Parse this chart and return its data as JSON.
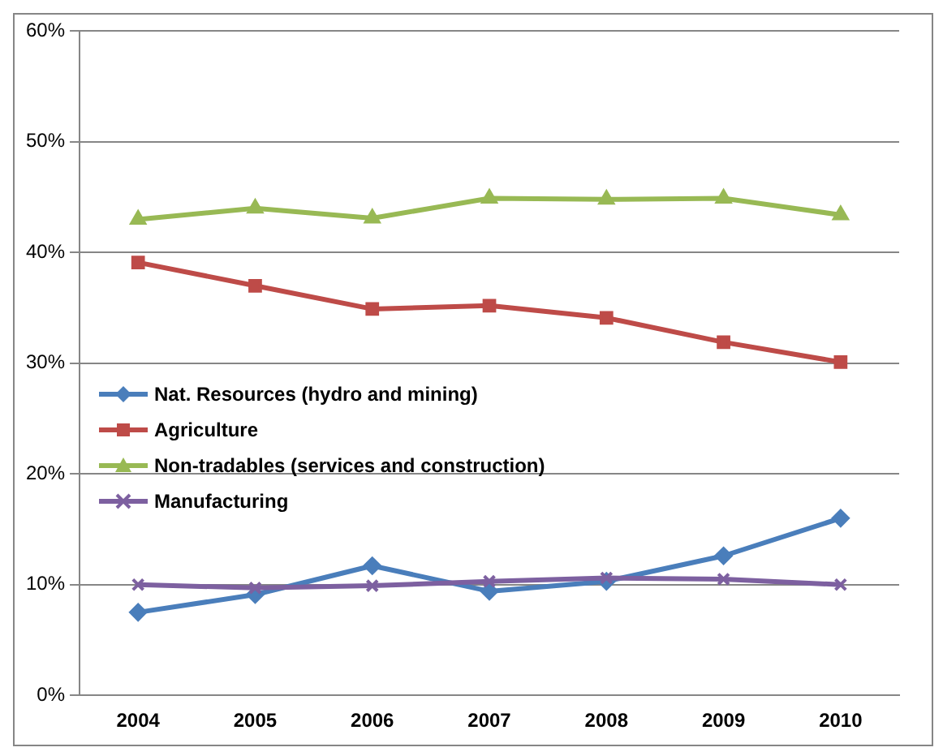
{
  "chart_data": {
    "type": "line",
    "categories": [
      "2004",
      "2005",
      "2006",
      "2007",
      "2008",
      "2009",
      "2010"
    ],
    "series": [
      {
        "name": "Nat. Resources (hydro and mining)",
        "color": "#4a7ebb",
        "marker": "diamond",
        "values": [
          7.5,
          9.1,
          11.7,
          9.4,
          10.3,
          12.6,
          16.0
        ]
      },
      {
        "name": "Agriculture",
        "color": "#be4b48",
        "marker": "square",
        "values": [
          39.1,
          37.0,
          34.9,
          35.2,
          34.1,
          31.9,
          30.1
        ]
      },
      {
        "name": "Non-tradables (services and construction)",
        "color": "#98b954",
        "marker": "triangle",
        "values": [
          43.0,
          44.0,
          43.1,
          44.9,
          44.8,
          44.9,
          43.4
        ]
      },
      {
        "name": "Manufacturing",
        "color": "#7d60a0",
        "marker": "cross",
        "values": [
          10.0,
          9.7,
          9.9,
          10.3,
          10.6,
          10.5,
          10.0
        ]
      }
    ],
    "ylim": [
      0,
      60
    ],
    "yticks": [
      {
        "value": 0,
        "label": "0%"
      },
      {
        "value": 10,
        "label": "10%"
      },
      {
        "value": 20,
        "label": "20%"
      },
      {
        "value": 30,
        "label": "30%"
      },
      {
        "value": 40,
        "label": "40%"
      },
      {
        "value": 50,
        "label": "50%"
      },
      {
        "value": 60,
        "label": "60%"
      }
    ],
    "grid": "y",
    "legend": "left",
    "line_style": "solid"
  }
}
